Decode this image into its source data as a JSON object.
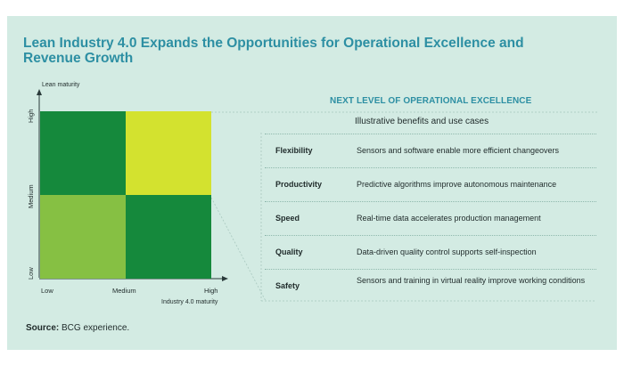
{
  "title": "Lean Industry 4.0 Expands the Opportunities for Operational Excellence and Revenue Growth",
  "matrix": {
    "y_axis_label": "Lean maturity",
    "x_axis_label": "Industry 4.0 maturity",
    "y_ticks": [
      "High",
      "Medium",
      "Low"
    ],
    "x_ticks": [
      "Low",
      "Medium",
      "High"
    ],
    "colors": {
      "dark_green": "#15893c",
      "light_green": "#86c043",
      "lime": "#d3e22f"
    }
  },
  "benefits": {
    "heading": "NEXT LEVEL OF OPERATIONAL EXCELLENCE",
    "subheading": "Illustrative benefits and use cases",
    "rows": [
      {
        "label": "Flexibility",
        "text": "Sensors and software enable more efficient changeovers"
      },
      {
        "label": "Productivity",
        "text": "Predictive algorithms improve autonomous maintenance"
      },
      {
        "label": "Speed",
        "text": "Real-time data accelerates production management"
      },
      {
        "label": "Quality",
        "text": "Data-driven quality control supports self-inspection"
      },
      {
        "label": "Safety",
        "text": "Sensors and training in virtual reality improve working conditions"
      }
    ]
  },
  "source": {
    "label": "Source:",
    "text": "BCG experience."
  }
}
